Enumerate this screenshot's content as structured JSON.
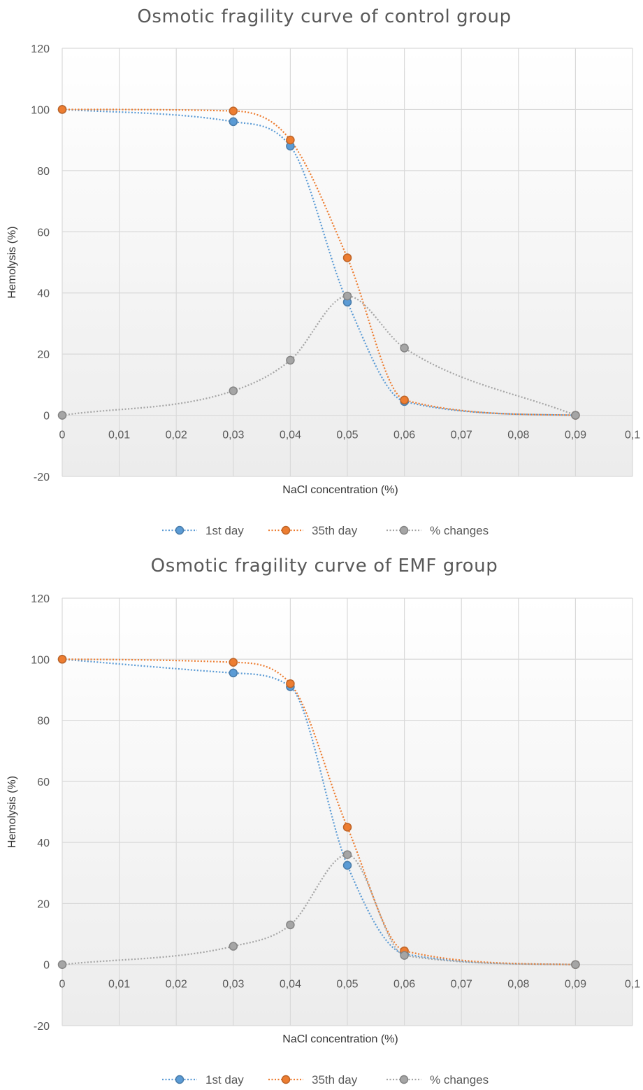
{
  "chart_data": [
    {
      "type": "line",
      "title": "Osmotic fragility curve of control group",
      "xlabel": "NaCl concentration (%)",
      "ylabel": "Hemolysis (%)",
      "xlim": [
        0,
        0.1
      ],
      "ylim": [
        -20,
        120
      ],
      "x_ticks": [
        "0",
        "0,01",
        "0,02",
        "0,03",
        "0,04",
        "0,05",
        "0,06",
        "0,07",
        "0,08",
        "0,09",
        "0,1"
      ],
      "y_ticks": [
        "120",
        "100",
        "80",
        "60",
        "40",
        "20",
        "0",
        "-20"
      ],
      "grid": true,
      "legend_position": "bottom",
      "series": [
        {
          "name": "1st day",
          "color": "#5b9bd5",
          "x": [
            0,
            0.03,
            0.04,
            0.05,
            0.06,
            0.09
          ],
          "y": [
            100,
            96,
            88,
            37,
            4.5,
            0
          ]
        },
        {
          "name": "35th day",
          "color": "#ed7d31",
          "x": [
            0,
            0.03,
            0.04,
            0.05,
            0.06,
            0.09
          ],
          "y": [
            100,
            99.5,
            90,
            51.5,
            5,
            0
          ]
        },
        {
          "name": "% changes",
          "color": "#a5a5a5",
          "x": [
            0,
            0.03,
            0.04,
            0.05,
            0.06,
            0.09
          ],
          "y": [
            0,
            8,
            18,
            39,
            22,
            0
          ]
        }
      ]
    },
    {
      "type": "line",
      "title": "Osmotic fragility curve of EMF group",
      "xlabel": "NaCl concentration (%)",
      "ylabel": "Hemolysis (%)",
      "xlim": [
        0,
        0.1
      ],
      "ylim": [
        -20,
        120
      ],
      "x_ticks": [
        "0",
        "0,01",
        "0,02",
        "0,03",
        "0,04",
        "0,05",
        "0,06",
        "0,07",
        "0,08",
        "0,09",
        "0,1"
      ],
      "y_ticks": [
        "120",
        "100",
        "80",
        "60",
        "40",
        "20",
        "0",
        "-20"
      ],
      "grid": true,
      "legend_position": "bottom",
      "series": [
        {
          "name": "1st day",
          "color": "#5b9bd5",
          "x": [
            0,
            0.03,
            0.04,
            0.05,
            0.06,
            0.09
          ],
          "y": [
            100,
            95.5,
            91,
            32.5,
            3.5,
            0
          ]
        },
        {
          "name": "35th day",
          "color": "#ed7d31",
          "x": [
            0,
            0.03,
            0.04,
            0.05,
            0.06,
            0.09
          ],
          "y": [
            100,
            99,
            92,
            45,
            4.5,
            0
          ]
        },
        {
          "name": "% changes",
          "color": "#a5a5a5",
          "x": [
            0,
            0.03,
            0.04,
            0.05,
            0.06,
            0.09
          ],
          "y": [
            0,
            6,
            13,
            36,
            3,
            0
          ]
        }
      ]
    }
  ],
  "colors": {
    "grid": "#d9d9d9",
    "text": "#595959",
    "plot_fill_top": "#ffffff",
    "plot_fill_bottom": "#ececec"
  }
}
